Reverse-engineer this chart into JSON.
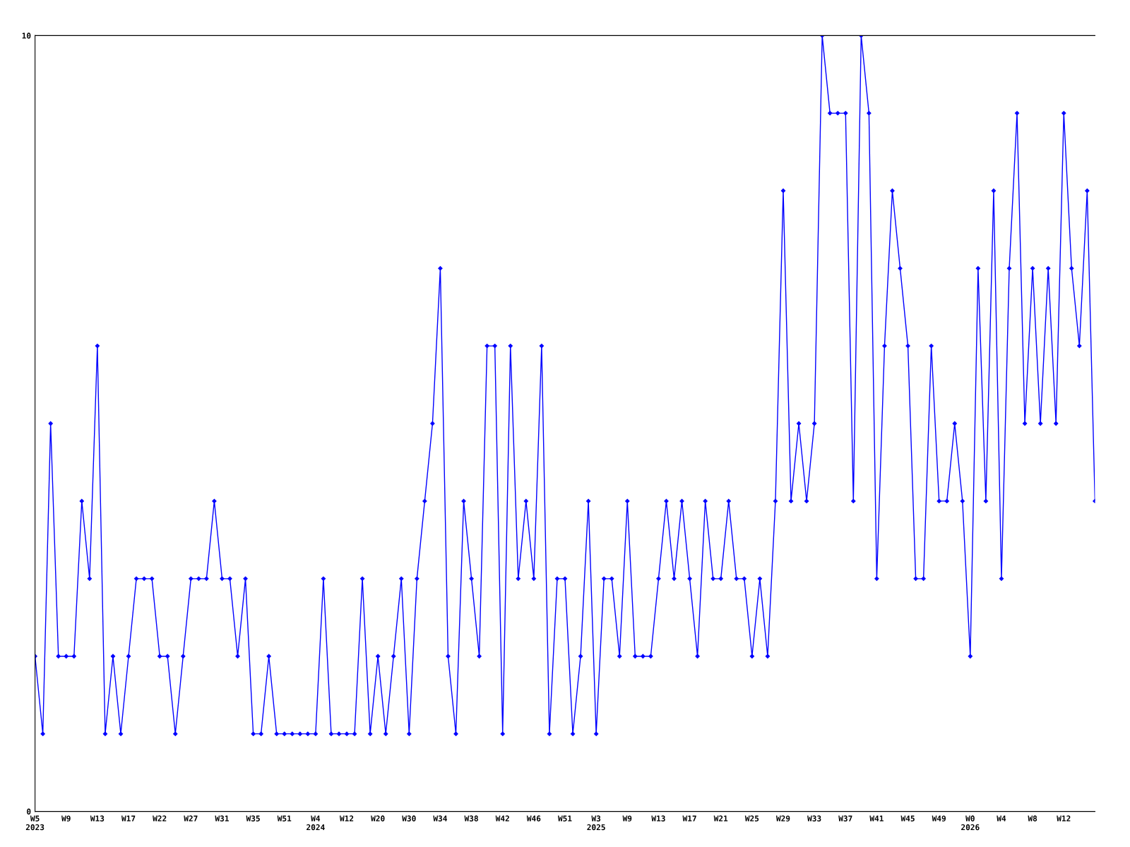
{
  "chart_data": {
    "type": "line",
    "categories": [
      "W5\n2023",
      null,
      null,
      null,
      "W9",
      null,
      null,
      null,
      "W13",
      null,
      null,
      null,
      "W17",
      null,
      null,
      null,
      "W22",
      null,
      null,
      null,
      "W27",
      null,
      null,
      null,
      "W31",
      null,
      null,
      null,
      "W35",
      null,
      null,
      null,
      "W51",
      null,
      null,
      null,
      "W4\n2024",
      null,
      null,
      null,
      "W12",
      null,
      null,
      null,
      "W20",
      null,
      null,
      null,
      "W30",
      null,
      null,
      null,
      "W34",
      null,
      null,
      null,
      "W38",
      null,
      null,
      null,
      "W42",
      null,
      null,
      null,
      "W46",
      null,
      null,
      null,
      "W51",
      null,
      null,
      null,
      "W3\n2025",
      null,
      null,
      null,
      "W9",
      null,
      null,
      null,
      "W13",
      null,
      null,
      null,
      "W17",
      null,
      null,
      null,
      "W21",
      null,
      null,
      null,
      "W25",
      null,
      null,
      null,
      "W29",
      null,
      null,
      null,
      "W33",
      null,
      null,
      null,
      "W37",
      null,
      null,
      null,
      "W41",
      null,
      null,
      null,
      "W45",
      null,
      null,
      null,
      "W49",
      null,
      null,
      null,
      "W0\n2026",
      null,
      null,
      null,
      "W4",
      null,
      null,
      null,
      "W8",
      null,
      null,
      null,
      "W12",
      null,
      null,
      null,
      null
    ],
    "series": [
      {
        "color": "#0000ff",
        "values": [
          2,
          1,
          5,
          2,
          2,
          2,
          4,
          3,
          6,
          1,
          2,
          1,
          2,
          3,
          3,
          3,
          2,
          2,
          1,
          2,
          3,
          3,
          3,
          4,
          3,
          3,
          2,
          3,
          1,
          1,
          2,
          1,
          1,
          1,
          1,
          1,
          1,
          3,
          1,
          1,
          1,
          1,
          3,
          1,
          2,
          1,
          2,
          3,
          1,
          3,
          4,
          5,
          7,
          2,
          1,
          4,
          3,
          2,
          6,
          6,
          1,
          6,
          3,
          4,
          3,
          6,
          1,
          3,
          3,
          1,
          2,
          4,
          1,
          3,
          3,
          2,
          4,
          2,
          2,
          2,
          3,
          4,
          3,
          4,
          3,
          2,
          4,
          3,
          3,
          4,
          3,
          3,
          2,
          3,
          2,
          4,
          8,
          4,
          5,
          4,
          5,
          10,
          9,
          9,
          9,
          4,
          10,
          9,
          3,
          6,
          8,
          7,
          6,
          3,
          3,
          6,
          4,
          4,
          5,
          4,
          2,
          7,
          4,
          8,
          3,
          7,
          9,
          5,
          7,
          5,
          7,
          5,
          9,
          7,
          6,
          8,
          4
        ]
      }
    ],
    "ylim": [
      0,
      10
    ],
    "yticks": [
      0,
      10
    ],
    "grid": false,
    "legend": false,
    "marker": "diamond",
    "line_style": "solid"
  }
}
